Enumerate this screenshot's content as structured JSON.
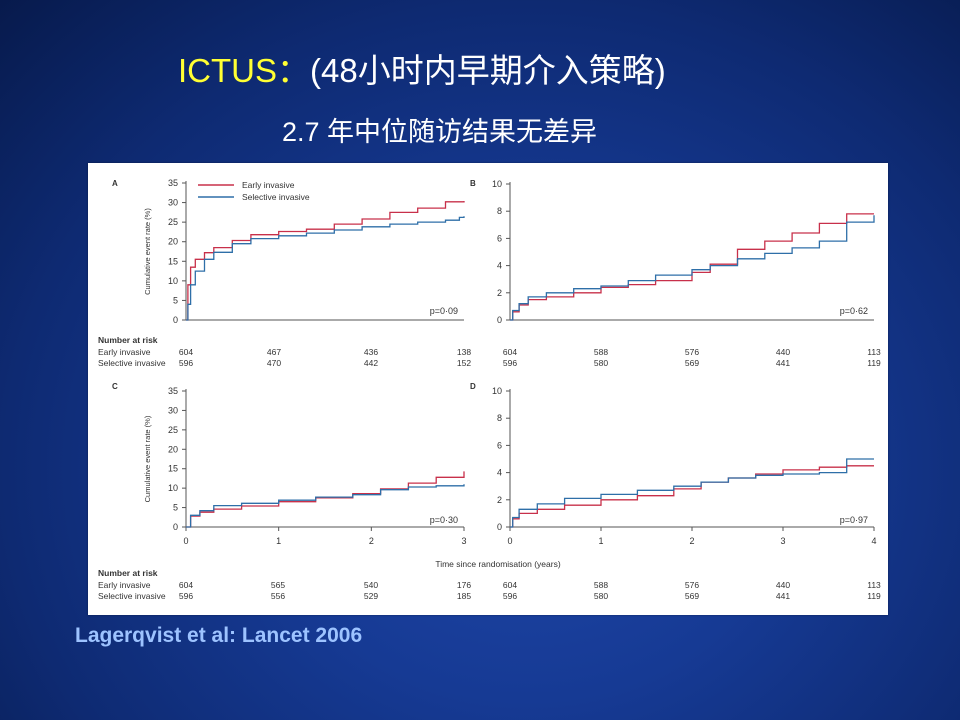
{
  "slide": {
    "title_prefix": "ICTUS：",
    "title_rest": "(48小时内早期介入策略)",
    "subtitle": "2.7 年中位随访结果无差异",
    "citation": "Lagerqvist et al: Lancet 2006"
  },
  "colors": {
    "early": "#c8304a",
    "selective": "#2e6fa8",
    "axis": "#555555",
    "text": "#333333"
  },
  "chart_data": [
    {
      "panel": "A",
      "type": "line",
      "ylabel": "Cumulative event rate (%)",
      "xlim": [
        0,
        3
      ],
      "ylim": [
        0,
        35
      ],
      "yticks": [
        0,
        5,
        10,
        15,
        20,
        25,
        30,
        35
      ],
      "xticks": [],
      "p_value": "p=0·09",
      "legend": [
        "Early invasive",
        "Selective invasive"
      ],
      "series": [
        {
          "name": "Early invasive",
          "x": [
            0,
            0.02,
            0.05,
            0.1,
            0.2,
            0.3,
            0.5,
            0.7,
            1.0,
            1.3,
            1.6,
            1.9,
            2.2,
            2.5,
            2.8,
            3.0
          ],
          "y": [
            0,
            9,
            13.5,
            15.5,
            17.2,
            18.5,
            20.3,
            21.8,
            22.6,
            23.2,
            24.5,
            25.8,
            27.5,
            28.6,
            30.2,
            30.4
          ]
        },
        {
          "name": "Selective invasive",
          "x": [
            0,
            0.02,
            0.05,
            0.1,
            0.2,
            0.3,
            0.5,
            0.7,
            1.0,
            1.3,
            1.6,
            1.9,
            2.2,
            2.5,
            2.8,
            2.95,
            3.0
          ],
          "y": [
            0,
            4,
            9,
            12.5,
            15.5,
            17.3,
            19.5,
            20.8,
            21.5,
            22.2,
            23,
            23.8,
            24.5,
            25,
            25.5,
            26.2,
            26.5
          ]
        }
      ],
      "risk": {
        "header": "Number at risk",
        "rows": [
          {
            "label": "Early invasive",
            "values": [
              "604",
              "467",
              "436",
              "138"
            ]
          },
          {
            "label": "Selective invasive",
            "values": [
              "596",
              "470",
              "442",
              "152"
            ]
          }
        ]
      }
    },
    {
      "panel": "B",
      "type": "line",
      "ylabel": "",
      "xlim": [
        0,
        4
      ],
      "ylim": [
        0,
        10
      ],
      "yticks": [
        0,
        2,
        4,
        6,
        8,
        10
      ],
      "xticks": [],
      "p_value": "p=0·62",
      "series": [
        {
          "name": "Early invasive",
          "x": [
            0,
            0.03,
            0.1,
            0.2,
            0.4,
            0.7,
            1.0,
            1.3,
            1.6,
            2.0,
            2.2,
            2.5,
            2.8,
            3.1,
            3.4,
            3.7,
            4.0
          ],
          "y": [
            0,
            0.6,
            1.1,
            1.5,
            1.7,
            2.0,
            2.4,
            2.6,
            2.9,
            3.5,
            4.1,
            5.2,
            5.8,
            6.4,
            7.1,
            7.8,
            7.8
          ]
        },
        {
          "name": "Selective invasive",
          "x": [
            0,
            0.03,
            0.1,
            0.2,
            0.4,
            0.7,
            1.0,
            1.3,
            1.6,
            2.0,
            2.2,
            2.5,
            2.8,
            3.1,
            3.4,
            3.7,
            4.0
          ],
          "y": [
            0,
            0.7,
            1.2,
            1.7,
            2.0,
            2.3,
            2.5,
            2.9,
            3.3,
            3.7,
            4.0,
            4.5,
            4.9,
            5.3,
            5.8,
            7.2,
            7.7
          ]
        }
      ],
      "risk": {
        "rows": [
          {
            "label": "Early invasive",
            "values": [
              "604",
              "588",
              "576",
              "440",
              "113"
            ]
          },
          {
            "label": "Selective invasive",
            "values": [
              "596",
              "580",
              "569",
              "441",
              "119"
            ]
          }
        ]
      }
    },
    {
      "panel": "C",
      "type": "line",
      "ylabel": "Cumulative event rate (%)",
      "xlim": [
        0,
        3
      ],
      "ylim": [
        0,
        35
      ],
      "yticks": [
        0,
        5,
        10,
        15,
        20,
        25,
        30,
        35
      ],
      "xticks": [
        0,
        1,
        2,
        3
      ],
      "p_value": "p=0·30",
      "series": [
        {
          "name": "Early invasive",
          "x": [
            0,
            0.05,
            0.15,
            0.3,
            0.6,
            1.0,
            1.4,
            1.8,
            2.1,
            2.4,
            2.7,
            3.0
          ],
          "y": [
            0,
            2.8,
            3.8,
            4.6,
            5.4,
            6.5,
            7.5,
            8.6,
            9.8,
            11.3,
            12.8,
            14.3
          ]
        },
        {
          "name": "Selective invasive",
          "x": [
            0,
            0.05,
            0.15,
            0.3,
            0.6,
            1.0,
            1.4,
            1.8,
            2.1,
            2.4,
            2.7,
            3.0
          ],
          "y": [
            0,
            3.0,
            4.2,
            5.5,
            6.1,
            6.9,
            7.7,
            8.3,
            9.6,
            10.3,
            10.6,
            11.0
          ]
        }
      ],
      "risk": {
        "header": "Number at risk",
        "rows": [
          {
            "label": "Early invasive",
            "values": [
              "604",
              "565",
              "540",
              "176"
            ]
          },
          {
            "label": "Selective invasive",
            "values": [
              "596",
              "556",
              "529",
              "185"
            ]
          }
        ]
      }
    },
    {
      "panel": "D",
      "type": "line",
      "ylabel": "",
      "xlim": [
        0,
        4
      ],
      "ylim": [
        0,
        10
      ],
      "yticks": [
        0,
        2,
        4,
        6,
        8,
        10
      ],
      "xticks": [
        0,
        1,
        2,
        3,
        4
      ],
      "p_value": "p=0·97",
      "xlabel": "Time since randomisation (years)",
      "series": [
        {
          "name": "Early invasive",
          "x": [
            0,
            0.03,
            0.1,
            0.3,
            0.6,
            1.0,
            1.4,
            1.8,
            2.1,
            2.4,
            2.7,
            3.0,
            3.4,
            3.7,
            4.0
          ],
          "y": [
            0,
            0.6,
            1.0,
            1.3,
            1.6,
            2.0,
            2.3,
            2.8,
            3.3,
            3.6,
            3.9,
            4.2,
            4.4,
            4.5,
            4.5
          ]
        },
        {
          "name": "Selective invasive",
          "x": [
            0,
            0.03,
            0.1,
            0.3,
            0.6,
            1.0,
            1.4,
            1.8,
            2.1,
            2.4,
            2.7,
            3.0,
            3.4,
            3.7,
            4.0
          ],
          "y": [
            0,
            0.7,
            1.3,
            1.7,
            2.1,
            2.4,
            2.7,
            3.0,
            3.3,
            3.6,
            3.8,
            3.9,
            4.0,
            5.0,
            5.0
          ]
        }
      ],
      "risk": {
        "rows": [
          {
            "label": "Early invasive",
            "values": [
              "604",
              "588",
              "576",
              "440",
              "113"
            ]
          },
          {
            "label": "Selective invasive",
            "values": [
              "596",
              "580",
              "569",
              "441",
              "119"
            ]
          }
        ]
      }
    }
  ]
}
